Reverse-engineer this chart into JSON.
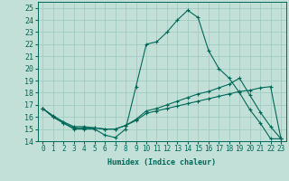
{
  "xlabel": "Humidex (Indice chaleur)",
  "bg_color": "#c2e0d8",
  "grid_color": "#9ec8bf",
  "line_color": "#006858",
  "xlim": [
    -0.5,
    23.5
  ],
  "ylim": [
    14,
    25.5
  ],
  "yticks": [
    14,
    15,
    16,
    17,
    18,
    19,
    20,
    21,
    22,
    23,
    24,
    25
  ],
  "xticks": [
    0,
    1,
    2,
    3,
    4,
    5,
    6,
    7,
    8,
    9,
    10,
    11,
    12,
    13,
    14,
    15,
    16,
    17,
    18,
    19,
    20,
    21,
    22,
    23
  ],
  "line1_y": [
    16.7,
    16.0,
    15.5,
    15.0,
    15.0,
    15.0,
    14.5,
    14.3,
    15.0,
    18.5,
    22.0,
    22.2,
    23.0,
    24.0,
    24.8,
    24.2,
    21.5,
    20.0,
    19.2,
    18.0,
    16.6,
    15.5,
    14.2,
    14.2
  ],
  "line2_y": [
    16.7,
    16.0,
    15.5,
    15.1,
    15.1,
    15.1,
    15.0,
    15.0,
    15.3,
    15.8,
    16.5,
    16.7,
    17.0,
    17.3,
    17.6,
    17.9,
    18.1,
    18.4,
    18.7,
    19.2,
    17.8,
    16.4,
    15.2,
    14.2
  ],
  "line3_y": [
    16.7,
    16.1,
    15.6,
    15.2,
    15.2,
    15.1,
    15.0,
    15.0,
    15.3,
    15.7,
    16.3,
    16.5,
    16.7,
    16.9,
    17.1,
    17.3,
    17.5,
    17.7,
    17.9,
    18.1,
    18.2,
    18.4,
    18.5,
    14.2
  ]
}
